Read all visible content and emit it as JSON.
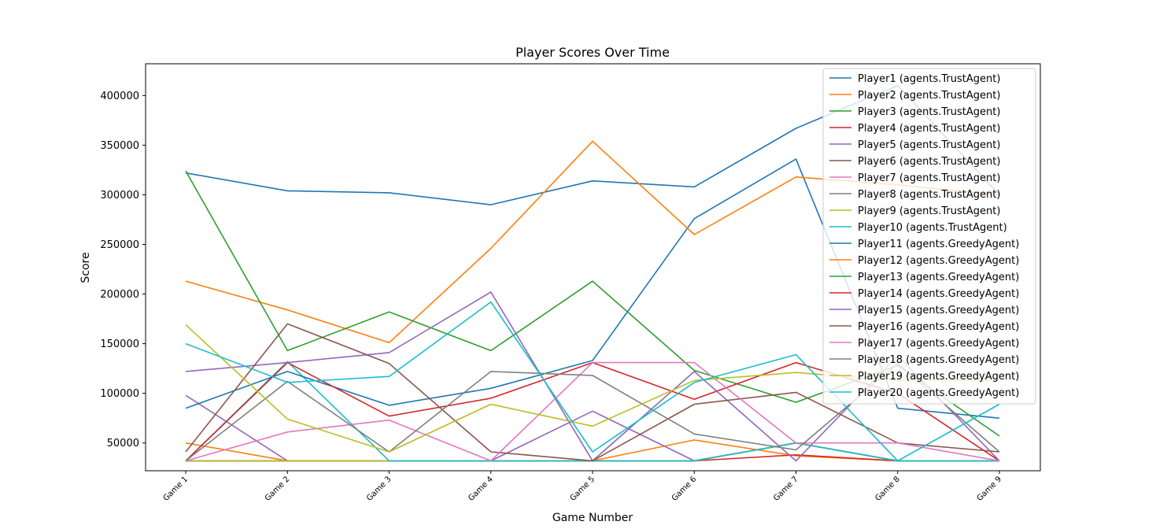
{
  "chart_data": {
    "type": "line",
    "title": "Player Scores Over Time",
    "xlabel": "Game Number",
    "ylabel": "Score",
    "categories": [
      "Game 1",
      "Game 2",
      "Game 3",
      "Game 4",
      "Game 5",
      "Game 6",
      "Game 7",
      "Game 8",
      "Game 9"
    ],
    "ylim": [
      22000,
      432000
    ],
    "yticks": [
      50000,
      100000,
      150000,
      200000,
      250000,
      300000,
      350000,
      400000
    ],
    "ytick_labels": [
      "50000",
      "100000",
      "150000",
      "200000",
      "250000",
      "300000",
      "350000",
      "400000"
    ],
    "grid": false,
    "legend_position": "upper right",
    "series": [
      {
        "name": "Player1 (agents.TrustAgent)",
        "color": "#1f77b4",
        "values": [
          322000,
          304000,
          302000,
          290000,
          314000,
          308000,
          367000,
          410000,
          300000
        ]
      },
      {
        "name": "Player2 (agents.TrustAgent)",
        "color": "#ff7f0e",
        "values": [
          50000,
          32000,
          32000,
          32000,
          32000,
          53000,
          37000,
          32000,
          32000
        ]
      },
      {
        "name": "Player3 (agents.TrustAgent)",
        "color": "#2ca02c",
        "values": [
          32000,
          32000,
          32000,
          32000,
          32000,
          32000,
          50000,
          32000,
          32000
        ]
      },
      {
        "name": "Player4 (agents.TrustAgent)",
        "color": "#d62728",
        "values": [
          32000,
          32000,
          32000,
          32000,
          32000,
          32000,
          38000,
          32000,
          32000
        ]
      },
      {
        "name": "Player5 (agents.TrustAgent)",
        "color": "#9467bd",
        "values": [
          98000,
          32000,
          32000,
          32000,
          82000,
          32000,
          50000,
          32000,
          32000
        ]
      },
      {
        "name": "Player6 (agents.TrustAgent)",
        "color": "#8c564b",
        "values": [
          32000,
          32000,
          32000,
          32000,
          32000,
          32000,
          50000,
          32000,
          32000
        ]
      },
      {
        "name": "Player7 (agents.TrustAgent)",
        "color": "#e377c2",
        "values": [
          32000,
          32000,
          32000,
          32000,
          32000,
          32000,
          50000,
          32000,
          32000
        ]
      },
      {
        "name": "Player8 (agents.TrustAgent)",
        "color": "#7f7f7f",
        "values": [
          32000,
          32000,
          32000,
          32000,
          32000,
          32000,
          50000,
          32000,
          32000
        ]
      },
      {
        "name": "Player9 (agents.TrustAgent)",
        "color": "#bcbd22",
        "values": [
          32000,
          32000,
          32000,
          32000,
          32000,
          32000,
          50000,
          32000,
          32000
        ]
      },
      {
        "name": "Player10 (agents.TrustAgent)",
        "color": "#17becf",
        "values": [
          32000,
          132000,
          32000,
          32000,
          32000,
          32000,
          50000,
          32000,
          32000
        ]
      },
      {
        "name": "Player11 (agents.GreedyAgent)",
        "color": "#1f77b4",
        "values": [
          85000,
          122000,
          88000,
          105000,
          133000,
          276000,
          336000,
          85000,
          75000
        ]
      },
      {
        "name": "Player12 (agents.GreedyAgent)",
        "color": "#ff7f0e",
        "values": [
          213000,
          184000,
          151000,
          246000,
          354000,
          260000,
          318000,
          310000,
          300000
        ]
      },
      {
        "name": "Player13 (agents.GreedyAgent)",
        "color": "#2ca02c",
        "values": [
          324000,
          143000,
          182000,
          143000,
          213000,
          123000,
          91000,
          128000,
          57000
        ]
      },
      {
        "name": "Player14 (agents.GreedyAgent)",
        "color": "#d62728",
        "values": [
          32000,
          131000,
          77000,
          95000,
          131000,
          94000,
          131000,
          100000,
          32000
        ]
      },
      {
        "name": "Player15 (agents.GreedyAgent)",
        "color": "#9467bd",
        "values": [
          122000,
          131000,
          141000,
          202000,
          32000,
          122000,
          32000,
          138000,
          32000
        ]
      },
      {
        "name": "Player16 (agents.GreedyAgent)",
        "color": "#8c564b",
        "values": [
          41000,
          170000,
          130000,
          41000,
          32000,
          89000,
          101000,
          50000,
          41000
        ]
      },
      {
        "name": "Player17 (agents.GreedyAgent)",
        "color": "#e377c2",
        "values": [
          32000,
          61000,
          73000,
          32000,
          131000,
          131000,
          50000,
          50000,
          32000
        ]
      },
      {
        "name": "Player18 (agents.GreedyAgent)",
        "color": "#7f7f7f",
        "values": [
          32000,
          112000,
          41000,
          122000,
          118000,
          59000,
          43000,
          130000,
          41000
        ]
      },
      {
        "name": "Player19 (agents.GreedyAgent)",
        "color": "#bcbd22",
        "values": [
          169000,
          74000,
          41000,
          89000,
          67000,
          113000,
          121000,
          113000,
          113000
        ]
      },
      {
        "name": "Player20 (agents.GreedyAgent)",
        "color": "#17becf",
        "values": [
          150000,
          111000,
          117000,
          192000,
          41000,
          111000,
          139000,
          32000,
          89000
        ]
      }
    ]
  }
}
